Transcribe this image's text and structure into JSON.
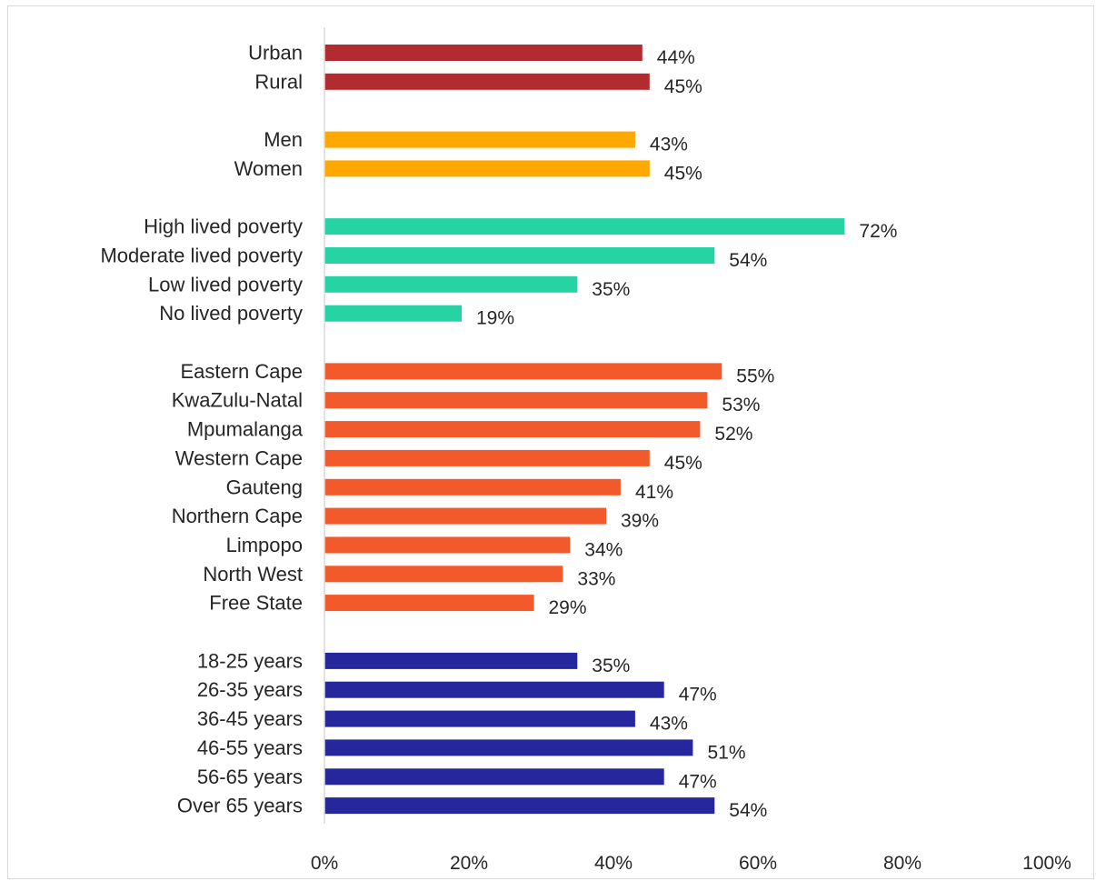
{
  "chart_data": {
    "type": "bar",
    "orientation": "horizontal",
    "title": "",
    "xlabel": "",
    "ylabel": "",
    "xlim": [
      0,
      100
    ],
    "x_ticks": [
      "0%",
      "20%",
      "40%",
      "60%",
      "80%",
      "100%"
    ],
    "grid": false,
    "legend": "none",
    "groups": [
      {
        "color": "#b22b30",
        "categories": [
          "Urban",
          "Rural"
        ],
        "values": [
          44,
          45
        ],
        "labels": [
          "44%",
          "45%"
        ]
      },
      {
        "color": "#ffa800",
        "categories": [
          "Men",
          "Women"
        ],
        "values": [
          43,
          45
        ],
        "labels": [
          "43%",
          "45%"
        ]
      },
      {
        "color": "#26d3a3",
        "categories": [
          "High lived poverty",
          "Moderate lived poverty",
          "Low lived poverty",
          "No lived poverty"
        ],
        "values": [
          72,
          54,
          35,
          19
        ],
        "labels": [
          "72%",
          "54%",
          "35%",
          "19%"
        ]
      },
      {
        "color": "#f35a2b",
        "categories": [
          "Eastern Cape",
          "KwaZulu-Natal",
          "Mpumalanga",
          "Western Cape",
          "Gauteng",
          "Northern Cape",
          "Limpopo",
          "North West",
          "Free State"
        ],
        "values": [
          55,
          53,
          52,
          45,
          41,
          39,
          34,
          33,
          29
        ],
        "labels": [
          "55%",
          "53%",
          "52%",
          "45%",
          "41%",
          "39%",
          "34%",
          "33%",
          "29%"
        ]
      },
      {
        "color": "#27279d",
        "categories": [
          "18-25 years",
          "26-35 years",
          "36-45 years",
          "46-55 years",
          "56-65 years",
          "Over 65 years"
        ],
        "values": [
          35,
          47,
          43,
          51,
          47,
          54
        ],
        "labels": [
          "35%",
          "47%",
          "43%",
          "51%",
          "47%",
          "54%"
        ]
      }
    ]
  }
}
